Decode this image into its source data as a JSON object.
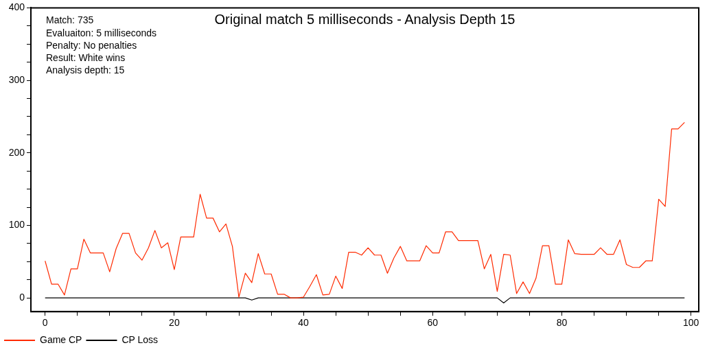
{
  "chart_data": {
    "type": "line",
    "title": "Original match 5 milliseconds - Analysis Depth 15",
    "annotations": [
      "Match: 735",
      "Evaluaiton: 5 milliseconds",
      "Penalty: No penalties",
      "Result: White wins",
      "Analysis depth: 15"
    ],
    "x": [
      0,
      1,
      2,
      3,
      4,
      5,
      6,
      7,
      8,
      9,
      10,
      11,
      12,
      13,
      14,
      15,
      16,
      17,
      18,
      19,
      20,
      21,
      22,
      23,
      24,
      25,
      26,
      27,
      28,
      29,
      30,
      31,
      32,
      33,
      34,
      35,
      36,
      37,
      38,
      39,
      40,
      41,
      42,
      43,
      44,
      45,
      46,
      47,
      48,
      49,
      50,
      51,
      52,
      53,
      54,
      55,
      56,
      57,
      58,
      59,
      60,
      61,
      62,
      63,
      64,
      65,
      66,
      67,
      68,
      69,
      70,
      71,
      72,
      73,
      74,
      75,
      76,
      77,
      78,
      79,
      80,
      81,
      82,
      83,
      84,
      85,
      86,
      87,
      88,
      89,
      90,
      91,
      92,
      93,
      94,
      95,
      96,
      97,
      98,
      99
    ],
    "series": [
      {
        "name": "Game CP",
        "color": "#ff2a00",
        "values": [
          51,
          19,
          19,
          4,
          40,
          40,
          81,
          62,
          62,
          62,
          36,
          68,
          89,
          89,
          62,
          52,
          69,
          93,
          69,
          76,
          39,
          84,
          84,
          84,
          143,
          110,
          110,
          91,
          102,
          71,
          1,
          34,
          21,
          61,
          33,
          33,
          5,
          5,
          0,
          0,
          1,
          16,
          32,
          4,
          5,
          30,
          13,
          63,
          63,
          59,
          69,
          59,
          59,
          34,
          55,
          71,
          51,
          51,
          51,
          72,
          62,
          62,
          91,
          91,
          79,
          79,
          79,
          79,
          40,
          60,
          9,
          60,
          59,
          6,
          22,
          6,
          27,
          72,
          72,
          19,
          19,
          80,
          61,
          60,
          60,
          60,
          69,
          60,
          60,
          80,
          46,
          42,
          42,
          51,
          51,
          136,
          126,
          233,
          233,
          242
        ]
      },
      {
        "name": "CP Loss",
        "color": "#000000",
        "values": [
          0,
          0,
          0,
          0,
          0,
          0,
          0,
          0,
          0,
          0,
          0,
          0,
          0,
          0,
          0,
          0,
          0,
          0,
          0,
          0,
          0,
          0,
          0,
          0,
          0,
          0,
          0,
          0,
          0,
          0,
          0,
          0,
          -3,
          0,
          0,
          0,
          0,
          0,
          0,
          0,
          0,
          0,
          0,
          0,
          0,
          0,
          0,
          0,
          0,
          0,
          0,
          0,
          0,
          0,
          0,
          0,
          0,
          0,
          0,
          0,
          0,
          0,
          0,
          0,
          0,
          0,
          0,
          0,
          0,
          0,
          0,
          -7,
          0,
          0,
          0,
          0,
          0,
          0,
          0,
          0,
          0,
          0,
          0,
          0,
          0,
          0,
          0,
          0,
          0,
          0,
          0,
          0,
          0,
          0,
          0,
          0,
          0,
          0,
          0,
          0
        ]
      }
    ],
    "xlim": [
      -2.2,
      101.2
    ],
    "ylim": [
      -19,
      400
    ],
    "xticks": [
      0,
      {
        "value": 5,
        "label": null
      },
      {
        "value": 10,
        "label": null
      },
      {
        "value": 15,
        "label": null
      },
      20,
      {
        "value": 25,
        "label": null
      },
      {
        "value": 30,
        "label": null
      },
      {
        "value": 35,
        "label": null
      },
      40,
      {
        "value": 45,
        "label": null
      },
      {
        "value": 50,
        "label": null
      },
      {
        "value": 55,
        "label": null
      },
      60,
      {
        "value": 65,
        "label": null
      },
      {
        "value": 70,
        "label": null
      },
      {
        "value": 75,
        "label": null
      },
      80,
      {
        "value": 85,
        "label": null
      },
      {
        "value": 90,
        "label": null
      },
      {
        "value": 95,
        "label": null
      },
      100
    ],
    "yticks": [
      0,
      {
        "value": 25,
        "label": null
      },
      {
        "value": 50,
        "label": null
      },
      {
        "value": 75,
        "label": null
      },
      100,
      {
        "value": 125,
        "label": null
      },
      {
        "value": 150,
        "label": null
      },
      {
        "value": 175,
        "label": null
      },
      200,
      {
        "value": 225,
        "label": null
      },
      {
        "value": 250,
        "label": null
      },
      {
        "value": 275,
        "label": null
      },
      300,
      {
        "value": 325,
        "label": null
      },
      {
        "value": 350,
        "label": null
      },
      {
        "value": 375,
        "label": null
      },
      400
    ],
    "grid": false,
    "legend": "bottom left",
    "marker": "none",
    "line_style": "solid"
  }
}
